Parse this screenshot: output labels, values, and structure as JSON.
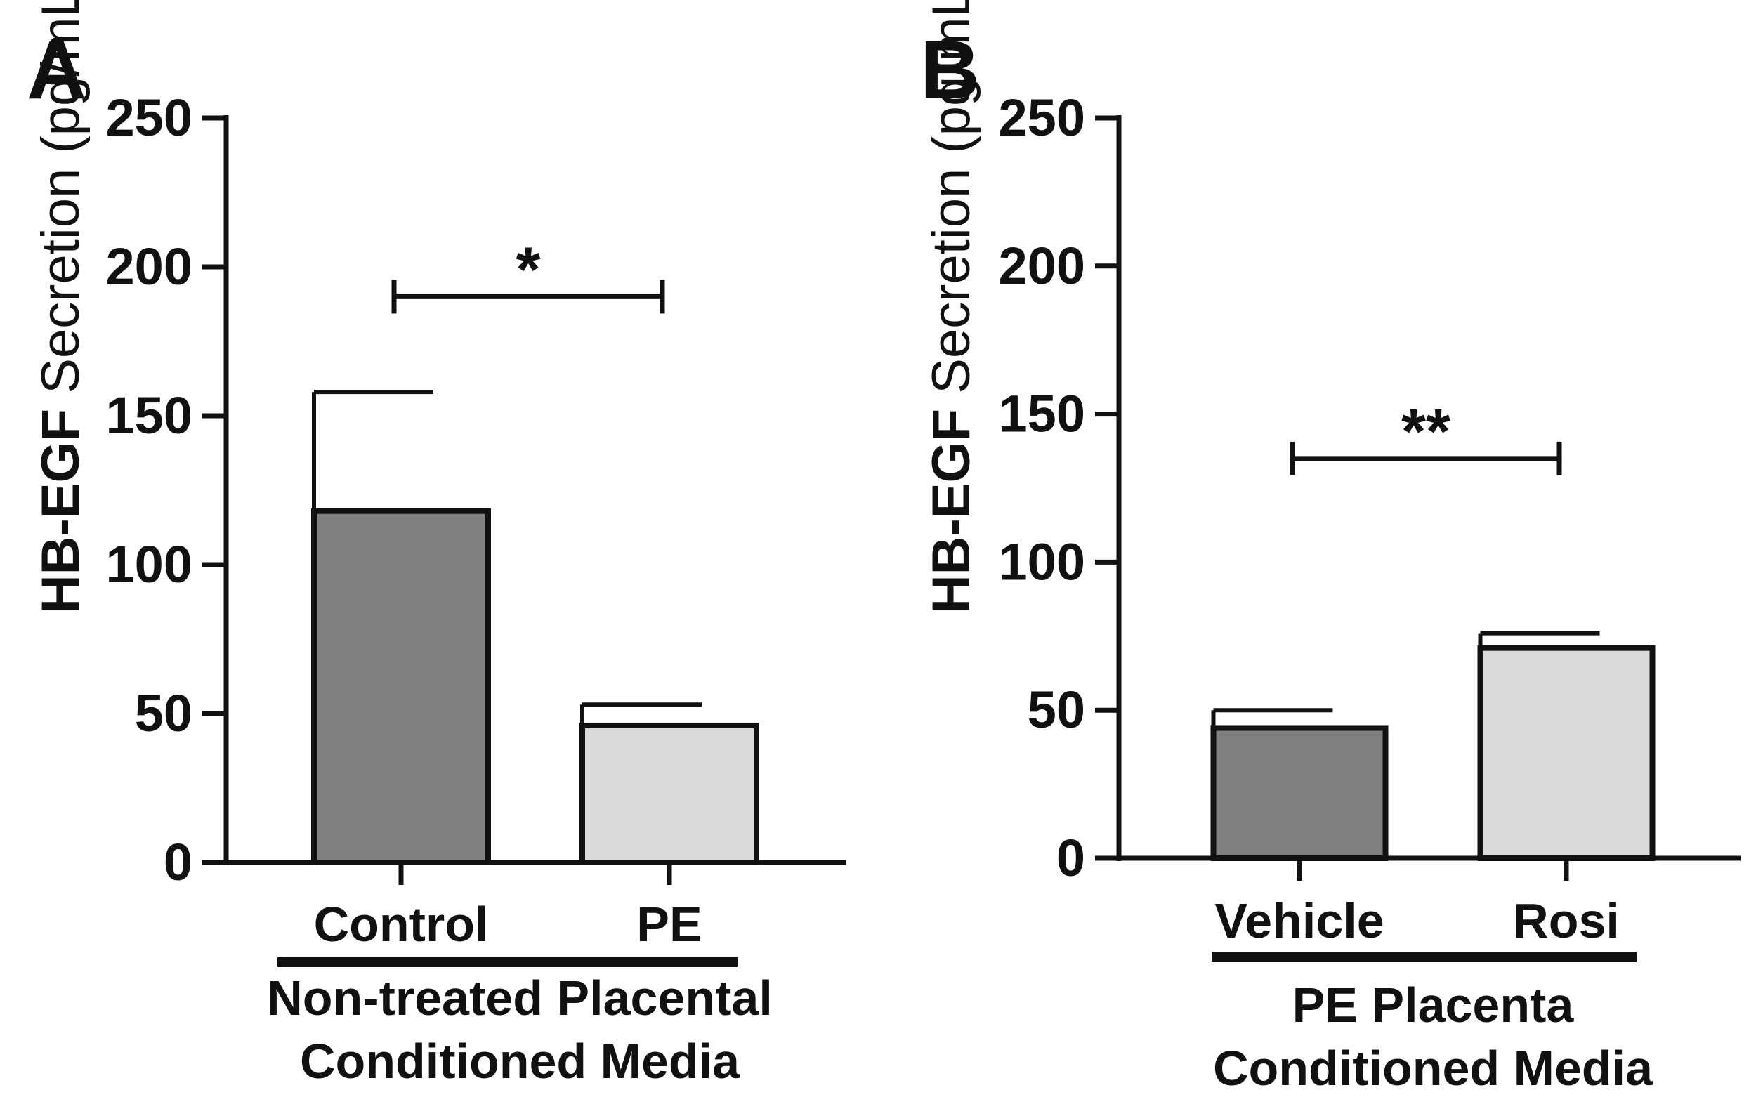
{
  "chart_data": [
    {
      "type": "bar",
      "panel_label": "A",
      "categories": [
        "Control",
        "PE"
      ],
      "values": [
        118,
        46
      ],
      "errors": [
        40,
        7
      ],
      "bar_colors": [
        "#808080",
        "#d9d9d9"
      ],
      "ylabel_bold": "HB-EGF",
      "ylabel_regular": " Secretion (pg/mL)",
      "ylim": [
        0,
        250
      ],
      "yticks": [
        "0",
        "50",
        "100",
        "150",
        "200",
        "250"
      ],
      "group_label_line1": "Non-treated Placental",
      "group_label_line2": "Conditioned Media",
      "significance": {
        "label": "*",
        "from": 0,
        "to": 1,
        "y": 190
      }
    },
    {
      "type": "bar",
      "panel_label": "B",
      "categories": [
        "Vehicle",
        "Rosi"
      ],
      "values": [
        44,
        71
      ],
      "errors": [
        6,
        5
      ],
      "bar_colors": [
        "#808080",
        "#d9d9d9"
      ],
      "ylabel_bold": "HB-EGF",
      "ylabel_regular": " Secretion (pg/mL)",
      "ylim": [
        0,
        250
      ],
      "yticks": [
        "0",
        "50",
        "100",
        "150",
        "200",
        "250"
      ],
      "group_label_line1": "PE Placenta",
      "group_label_line2": "Conditioned Media",
      "significance": {
        "label": "**",
        "from": 0,
        "to": 1,
        "y": 135
      }
    }
  ]
}
